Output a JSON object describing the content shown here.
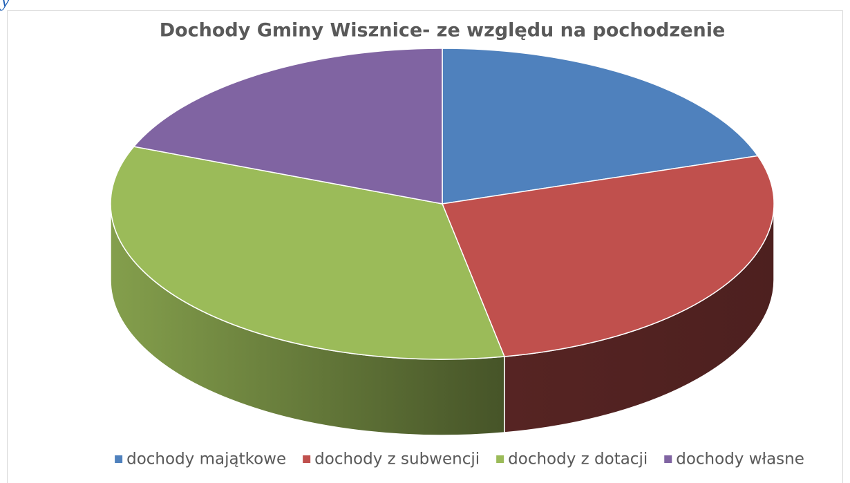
{
  "page_fragment": "y",
  "chart_data": {
    "type": "pie3d",
    "title": "Dochody Gminy Wisznice- ze względu na pochodzenie",
    "categories": [
      "dochody majątkowe",
      "dochody z subwencji",
      "dochody z dotacji",
      "dochody własne"
    ],
    "values": [
      20,
      27,
      34,
      19
    ],
    "colors": [
      "#4f81bd",
      "#c0504d",
      "#9bbb59",
      "#8064a2"
    ],
    "legend": "bottom"
  }
}
